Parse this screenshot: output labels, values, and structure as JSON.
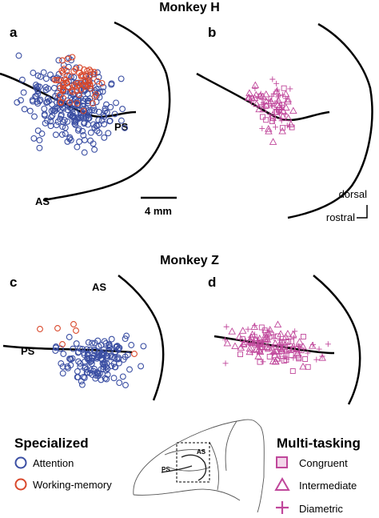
{
  "colors": {
    "attention": "#3b4fa3",
    "working_memory": "#d9482b",
    "multi_tasking": "#c0479b",
    "line": "#000000"
  },
  "monkey_h": {
    "title": "Monkey H"
  },
  "monkey_z": {
    "title": "Monkey Z"
  },
  "panels": {
    "a": {
      "letter": "a",
      "as_label": "AS",
      "ps_label": "PS"
    },
    "b": {
      "letter": "b"
    },
    "c": {
      "letter": "c",
      "as_label": "AS",
      "ps_label": "PS"
    },
    "d": {
      "letter": "d"
    }
  },
  "scale": {
    "label": "4 mm"
  },
  "orientation": {
    "dorsal": "dorsal",
    "rostral": "rostral"
  },
  "legend": {
    "specialized": {
      "title": "Specialized",
      "items": [
        {
          "label": "Attention",
          "marker": "circle",
          "color": "#3b4fa3"
        },
        {
          "label": "Working-memory",
          "marker": "circle",
          "color": "#d9482b"
        }
      ]
    },
    "multi_tasking": {
      "title": "Multi-tasking",
      "items": [
        {
          "label": "Congruent",
          "marker": "square",
          "color": "#c0479b"
        },
        {
          "label": "Intermediate",
          "marker": "triangle",
          "color": "#c0479b"
        },
        {
          "label": "Diametric",
          "marker": "plus",
          "color": "#c0479b"
        }
      ]
    }
  },
  "brain_inset": {
    "as_label": "AS",
    "ps_label": "PS"
  }
}
